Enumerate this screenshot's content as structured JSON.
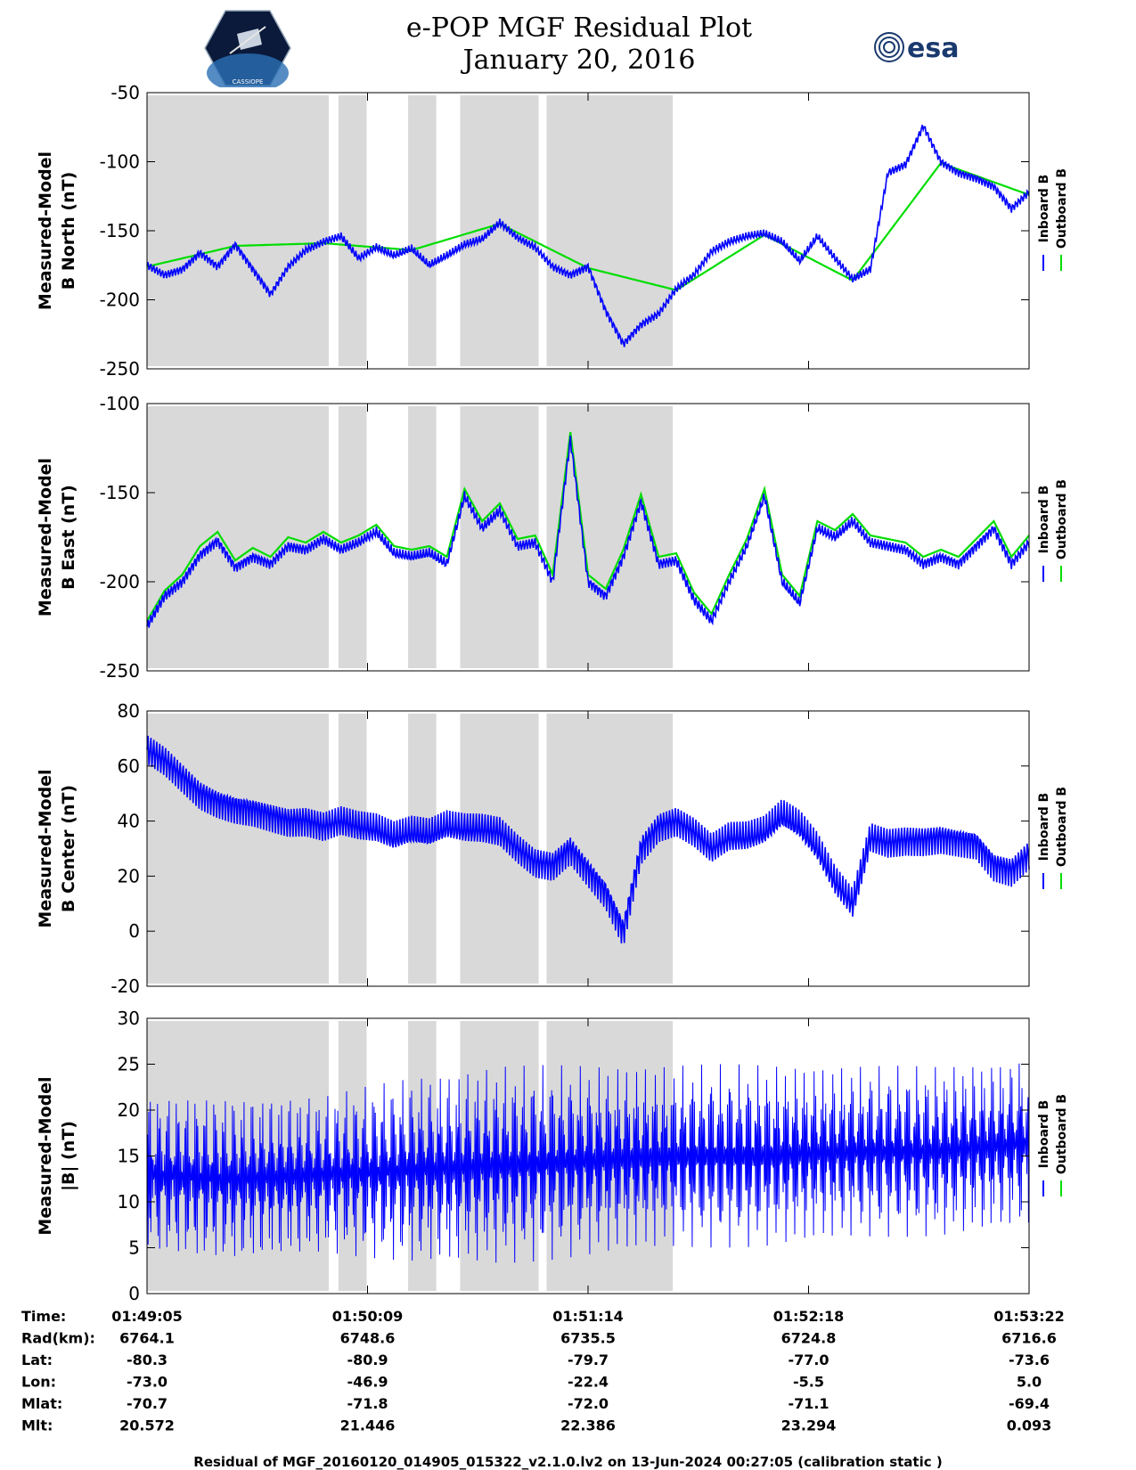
{
  "header": {
    "title_line1": "e-POP MGF Residual Plot",
    "title_line2": "January 20, 2016",
    "logo_left_text": "CASSIOPE",
    "logo_right_text": "esa"
  },
  "legend": {
    "inboard": "Inboard B",
    "outboard": "Outboard B",
    "inboard_color": "#0000ff",
    "outboard_color": "#00dd00"
  },
  "chart_data": [
    {
      "type": "line",
      "panel": "north",
      "ylabel": [
        "Measured-Model",
        "B North (nT)"
      ],
      "ylim": [
        -250,
        -50
      ],
      "yticks": [
        -50,
        -100,
        -150,
        -200,
        -250
      ],
      "series": [
        {
          "name": "Inboard B",
          "color": "#0000ff",
          "x": [
            0,
            2,
            4,
            6,
            8,
            10,
            12,
            14,
            16,
            18,
            20,
            22,
            24,
            26,
            28,
            30,
            32,
            34,
            36,
            38,
            40,
            42,
            44,
            46,
            48,
            50,
            52,
            54,
            56,
            58,
            60,
            62,
            64,
            66,
            68,
            70,
            72,
            74,
            76,
            78,
            80,
            82,
            84,
            86,
            88,
            90,
            92,
            94,
            96,
            98,
            100
          ],
          "y": [
            -175,
            -182,
            -178,
            -166,
            -176,
            -160,
            -178,
            -196,
            -176,
            -164,
            -158,
            -154,
            -170,
            -162,
            -168,
            -163,
            -175,
            -168,
            -160,
            -156,
            -144,
            -155,
            -162,
            -176,
            -182,
            -176,
            -208,
            -232,
            -218,
            -210,
            -192,
            -182,
            -165,
            -158,
            -154,
            -152,
            -158,
            -172,
            -154,
            -170,
            -185,
            -178,
            -108,
            -102,
            -74,
            -100,
            -108,
            -112,
            -118,
            -134,
            -122
          ]
        },
        {
          "name": "Outboard B",
          "color": "#00dd00",
          "x": [
            0,
            10,
            20,
            30,
            40,
            50,
            60,
            70,
            80,
            90,
            100
          ],
          "y": [
            -176,
            -161,
            -159,
            -164,
            -145,
            -177,
            -193,
            -153,
            -186,
            -101,
            -124
          ]
        }
      ]
    },
    {
      "type": "line",
      "panel": "east",
      "ylabel": [
        "Measured-Model",
        "B East (nT)"
      ],
      "ylim": [
        -250,
        -100
      ],
      "yticks": [
        -100,
        -150,
        -200,
        -250
      ],
      "series": [
        {
          "name": "Inboard B",
          "color": "#0000ff",
          "x": [
            0,
            2,
            4,
            6,
            8,
            10,
            12,
            14,
            16,
            18,
            20,
            22,
            24,
            26,
            28,
            30,
            32,
            34,
            36,
            38,
            40,
            42,
            44,
            46,
            48,
            50,
            52,
            54,
            56,
            58,
            60,
            62,
            64,
            66,
            68,
            70,
            72,
            74,
            76,
            78,
            80,
            82,
            84,
            86,
            88,
            90,
            92,
            94,
            96,
            98,
            100
          ],
          "y": [
            -225,
            -208,
            -200,
            -185,
            -177,
            -192,
            -186,
            -190,
            -180,
            -182,
            -176,
            -182,
            -178,
            -172,
            -184,
            -186,
            -184,
            -190,
            -152,
            -170,
            -160,
            -180,
            -178,
            -200,
            -120,
            -200,
            -208,
            -186,
            -155,
            -190,
            -188,
            -210,
            -222,
            -200,
            -180,
            -152,
            -200,
            -212,
            -170,
            -175,
            -166,
            -178,
            -180,
            -182,
            -190,
            -186,
            -190,
            -180,
            -170,
            -190,
            -178
          ]
        },
        {
          "name": "Outboard B",
          "color": "#00dd00",
          "x": [
            0,
            2,
            4,
            6,
            8,
            10,
            12,
            14,
            16,
            18,
            20,
            22,
            24,
            26,
            28,
            30,
            32,
            34,
            36,
            38,
            40,
            42,
            44,
            46,
            48,
            50,
            52,
            54,
            56,
            58,
            60,
            62,
            64,
            66,
            68,
            70,
            72,
            74,
            76,
            78,
            80,
            82,
            84,
            86,
            88,
            90,
            92,
            94,
            96,
            98,
            100
          ],
          "y": [
            -222,
            -205,
            -196,
            -180,
            -172,
            -188,
            -181,
            -186,
            -175,
            -178,
            -172,
            -178,
            -174,
            -168,
            -180,
            -182,
            -180,
            -186,
            -148,
            -166,
            -156,
            -176,
            -174,
            -196,
            -116,
            -196,
            -204,
            -182,
            -151,
            -186,
            -184,
            -206,
            -218,
            -196,
            -176,
            -148,
            -196,
            -208,
            -166,
            -171,
            -162,
            -174,
            -176,
            -178,
            -186,
            -182,
            -186,
            -176,
            -166,
            -186,
            -174
          ]
        }
      ]
    },
    {
      "type": "line",
      "panel": "center",
      "ylabel": [
        "Measured-Model",
        "B Center (nT)"
      ],
      "ylim": [
        -20,
        80
      ],
      "yticks": [
        80,
        60,
        40,
        20,
        0,
        -20
      ],
      "series": [
        {
          "name": "Inboard B",
          "color": "#0000ff",
          "x": [
            0,
            2,
            4,
            6,
            8,
            10,
            12,
            14,
            16,
            18,
            20,
            22,
            24,
            26,
            28,
            30,
            32,
            34,
            36,
            38,
            40,
            42,
            44,
            46,
            48,
            50,
            52,
            54,
            56,
            58,
            60,
            62,
            64,
            66,
            68,
            70,
            72,
            74,
            76,
            78,
            80,
            82,
            84,
            86,
            88,
            90,
            92,
            94,
            96,
            98,
            100
          ],
          "y": [
            66,
            62,
            56,
            50,
            47,
            45,
            44,
            42,
            40,
            40,
            38,
            40,
            38,
            37,
            34,
            36,
            35,
            38,
            37,
            37,
            36,
            30,
            25,
            24,
            30,
            22,
            14,
            0,
            30,
            38,
            40,
            36,
            30,
            34,
            34,
            36,
            42,
            38,
            30,
            18,
            10,
            34,
            32,
            33,
            33,
            34,
            33,
            32,
            24,
            22,
            28
          ],
          "amplitude": 6
        }
      ]
    },
    {
      "type": "line",
      "panel": "magnitude",
      "ylabel": [
        "Measured-Model",
        "|B| (nT)"
      ],
      "ylim": [
        0,
        30
      ],
      "yticks": [
        30,
        25,
        20,
        15,
        10,
        5,
        0
      ],
      "series": [
        {
          "name": "Inboard B",
          "color": "#0000ff",
          "x": [
            0,
            10,
            20,
            30,
            40,
            50,
            60,
            70,
            80,
            90,
            100
          ],
          "y": [
            13,
            12.5,
            13,
            13.5,
            14,
            14.5,
            15,
            15,
            15.5,
            15.5,
            16.5
          ],
          "envelope_min": [
            2,
            3,
            3,
            3,
            3,
            3,
            3,
            3,
            3,
            3,
            3
          ],
          "envelope_max": [
            22,
            22,
            22,
            24,
            25,
            25,
            25,
            25,
            25,
            25,
            26
          ]
        }
      ]
    }
  ],
  "shaded_intervals": [
    [
      0,
      20.6
    ],
    [
      21.7,
      24.9
    ],
    [
      29.6,
      32.8
    ],
    [
      35.5,
      44.4
    ],
    [
      45.3,
      59.6
    ]
  ],
  "time_axis": {
    "xticks": [
      0,
      25,
      50,
      75,
      100
    ],
    "rows": [
      {
        "label": "Time:",
        "values": [
          "01:49:05",
          "01:50:09",
          "01:51:14",
          "01:52:18",
          "01:53:22"
        ]
      },
      {
        "label": "Rad(km):",
        "values": [
          "6764.1",
          "6748.6",
          "6735.5",
          "6724.8",
          "6716.6"
        ]
      },
      {
        "label": "Lat:",
        "values": [
          "-80.3",
          "-80.9",
          "-79.7",
          "-77.0",
          "-73.6"
        ]
      },
      {
        "label": "Lon:",
        "values": [
          "-73.0",
          "-46.9",
          "-22.4",
          "-5.5",
          "5.0"
        ]
      },
      {
        "label": "Mlat:",
        "values": [
          "-70.7",
          "-71.8",
          "-72.0",
          "-71.1",
          "-69.4"
        ]
      },
      {
        "label": "Mlt:",
        "values": [
          "20.572",
          "21.446",
          "22.386",
          "23.294",
          "0.093"
        ]
      }
    ]
  },
  "footer": "Residual of MGF_20160120_014905_015322_v2.1.0.lv2 on 13-Jun-2024 00:27:05 (calibration static )"
}
